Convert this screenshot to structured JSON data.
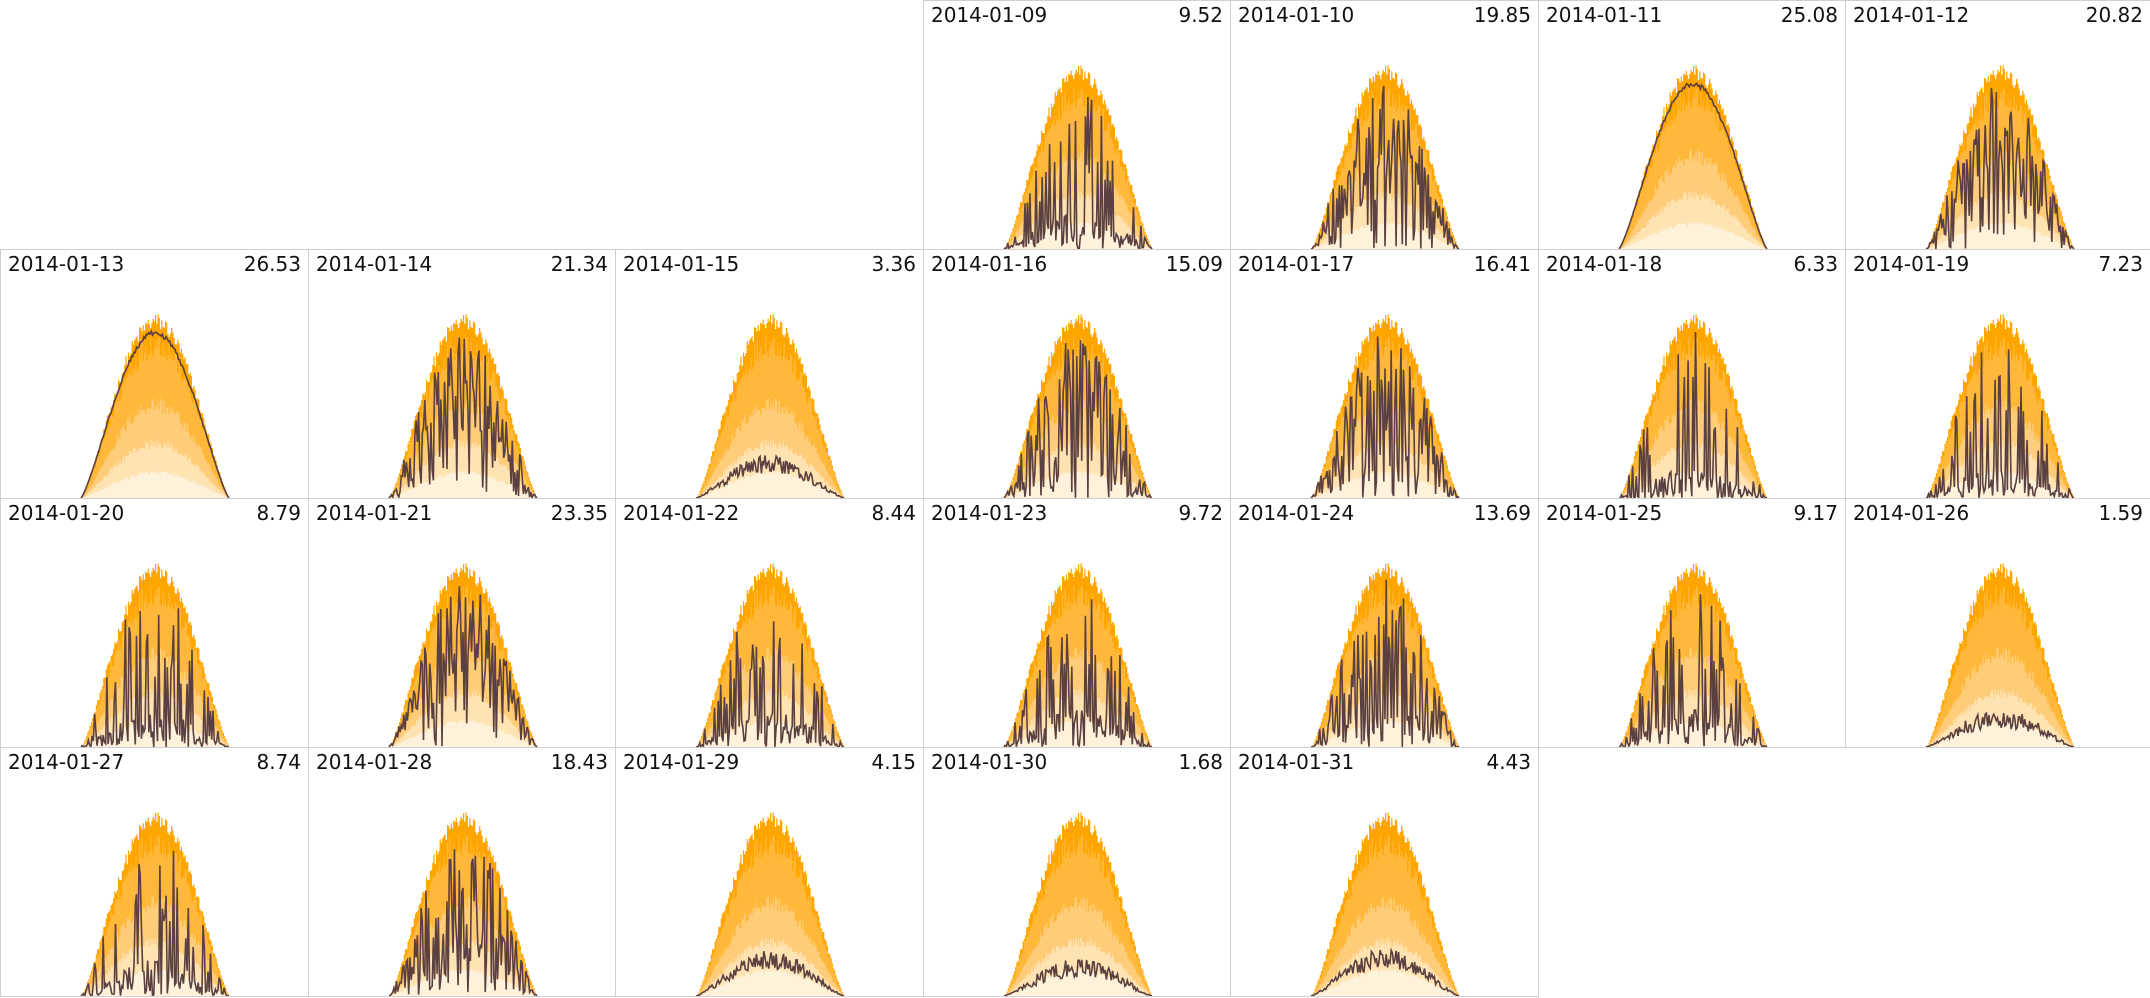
{
  "colors": {
    "band_max": "#ffa500",
    "band_high": "#ffb83a",
    "band_mid": "#ffcd7a",
    "band_low": "#ffe3b3",
    "band_min": "#fff2db",
    "actual_line": "#5a4040",
    "cell_border": "#cfcfcf"
  },
  "chart_data": {
    "type": "area",
    "title": "",
    "xlabel": "",
    "ylabel": "",
    "grid": false,
    "legend": "none",
    "layout": "calendar grid, 7 columns (weekdays), month 2014-01 starting at column 4",
    "note": "each panel shows the shared clear-sky envelope (orange bands) with the day's actual production line; the number is the day's total",
    "days": [
      {
        "date": "2014-01-09",
        "total": "9.52"
      },
      {
        "date": "2014-01-10",
        "total": "19.85"
      },
      {
        "date": "2014-01-11",
        "total": "25.08"
      },
      {
        "date": "2014-01-12",
        "total": "20.82"
      },
      {
        "date": "2014-01-13",
        "total": "26.53"
      },
      {
        "date": "2014-01-14",
        "total": "21.34"
      },
      {
        "date": "2014-01-15",
        "total": "3.36"
      },
      {
        "date": "2014-01-16",
        "total": "15.09"
      },
      {
        "date": "2014-01-17",
        "total": "16.41"
      },
      {
        "date": "2014-01-18",
        "total": "6.33"
      },
      {
        "date": "2014-01-19",
        "total": "7.23"
      },
      {
        "date": "2014-01-20",
        "total": "8.79"
      },
      {
        "date": "2014-01-21",
        "total": "23.35"
      },
      {
        "date": "2014-01-22",
        "total": "8.44"
      },
      {
        "date": "2014-01-23",
        "total": "9.72"
      },
      {
        "date": "2014-01-24",
        "total": "13.69"
      },
      {
        "date": "2014-01-25",
        "total": "9.17"
      },
      {
        "date": "2014-01-26",
        "total": "1.59"
      },
      {
        "date": "2014-01-27",
        "total": "8.74"
      },
      {
        "date": "2014-01-28",
        "total": "18.43"
      },
      {
        "date": "2014-01-29",
        "total": "4.15"
      },
      {
        "date": "2014-01-30",
        "total": "1.68"
      },
      {
        "date": "2014-01-31",
        "total": "4.43"
      }
    ]
  }
}
